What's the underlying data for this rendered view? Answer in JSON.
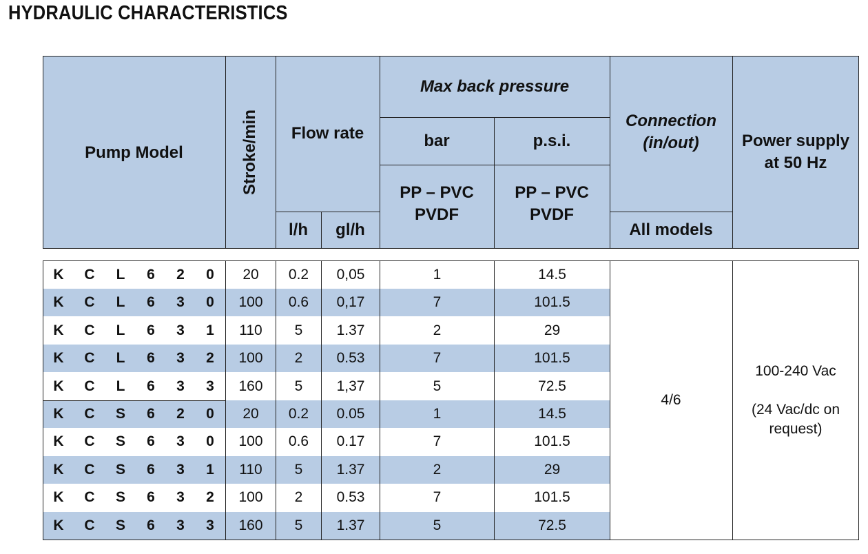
{
  "title": "HYDRAULIC CHARACTERISTICS",
  "header": {
    "pump_model": "Pump Model",
    "stroke": "Stroke/min",
    "flow_rate": "Flow rate",
    "flow_lh": "l/h",
    "flow_glh": "gl/h",
    "max_back_pressure": "Max back pressure",
    "bar": "bar",
    "psi": "p.s.i.",
    "bar_material_1": "PP – PVC",
    "bar_material_2": "PVDF",
    "psi_material_1": "PP – PVC",
    "psi_material_2": "PVDF",
    "connection_1": "Connection",
    "connection_2": "(in/out)",
    "all_models": "All models",
    "power_1": "Power supply",
    "power_2": "at 50 Hz"
  },
  "rows": [
    {
      "model": [
        "K",
        "C",
        "L",
        "6",
        "2",
        "0"
      ],
      "stroke": "20",
      "lh": "0.2",
      "glh": "0,05",
      "bar": "1",
      "psi": "14.5"
    },
    {
      "model": [
        "K",
        "C",
        "L",
        "6",
        "3",
        "0"
      ],
      "stroke": "100",
      "lh": "0.6",
      "glh": "0,17",
      "bar": "7",
      "psi": "101.5"
    },
    {
      "model": [
        "K",
        "C",
        "L",
        "6",
        "3",
        "1"
      ],
      "stroke": "110",
      "lh": "5",
      "glh": "1.37",
      "bar": "2",
      "psi": "29"
    },
    {
      "model": [
        "K",
        "C",
        "L",
        "6",
        "3",
        "2"
      ],
      "stroke": "100",
      "lh": "2",
      "glh": "0.53",
      "bar": "7",
      "psi": "101.5"
    },
    {
      "model": [
        "K",
        "C",
        "L",
        "6",
        "3",
        "3"
      ],
      "stroke": "160",
      "lh": "5",
      "glh": "1,37",
      "bar": "5",
      "psi": "72.5"
    },
    {
      "model": [
        "K",
        "C",
        "S",
        "6",
        "2",
        "0"
      ],
      "stroke": "20",
      "lh": "0.2",
      "glh": "0.05",
      "bar": "1",
      "psi": "14.5"
    },
    {
      "model": [
        "K",
        "C",
        "S",
        "6",
        "3",
        "0"
      ],
      "stroke": "100",
      "lh": "0.6",
      "glh": "0.17",
      "bar": "7",
      "psi": "101.5"
    },
    {
      "model": [
        "K",
        "C",
        "S",
        "6",
        "3",
        "1"
      ],
      "stroke": "110",
      "lh": "5",
      "glh": "1.37",
      "bar": "2",
      "psi": "29"
    },
    {
      "model": [
        "K",
        "C",
        "S",
        "6",
        "3",
        "2"
      ],
      "stroke": "100",
      "lh": "2",
      "glh": "0.53",
      "bar": "7",
      "psi": "101.5"
    },
    {
      "model": [
        "K",
        "C",
        "S",
        "6",
        "3",
        "3"
      ],
      "stroke": "160",
      "lh": "5",
      "glh": "1.37",
      "bar": "5",
      "psi": "72.5"
    }
  ],
  "connection_value": "4/6",
  "power_value_1": "100-240 Vac",
  "power_value_2": "(24 Vac/dc on",
  "power_value_3": "request)",
  "colors": {
    "header_bg": "#b8cce4",
    "row_shade": "#b8cce4",
    "border": "#222222"
  }
}
